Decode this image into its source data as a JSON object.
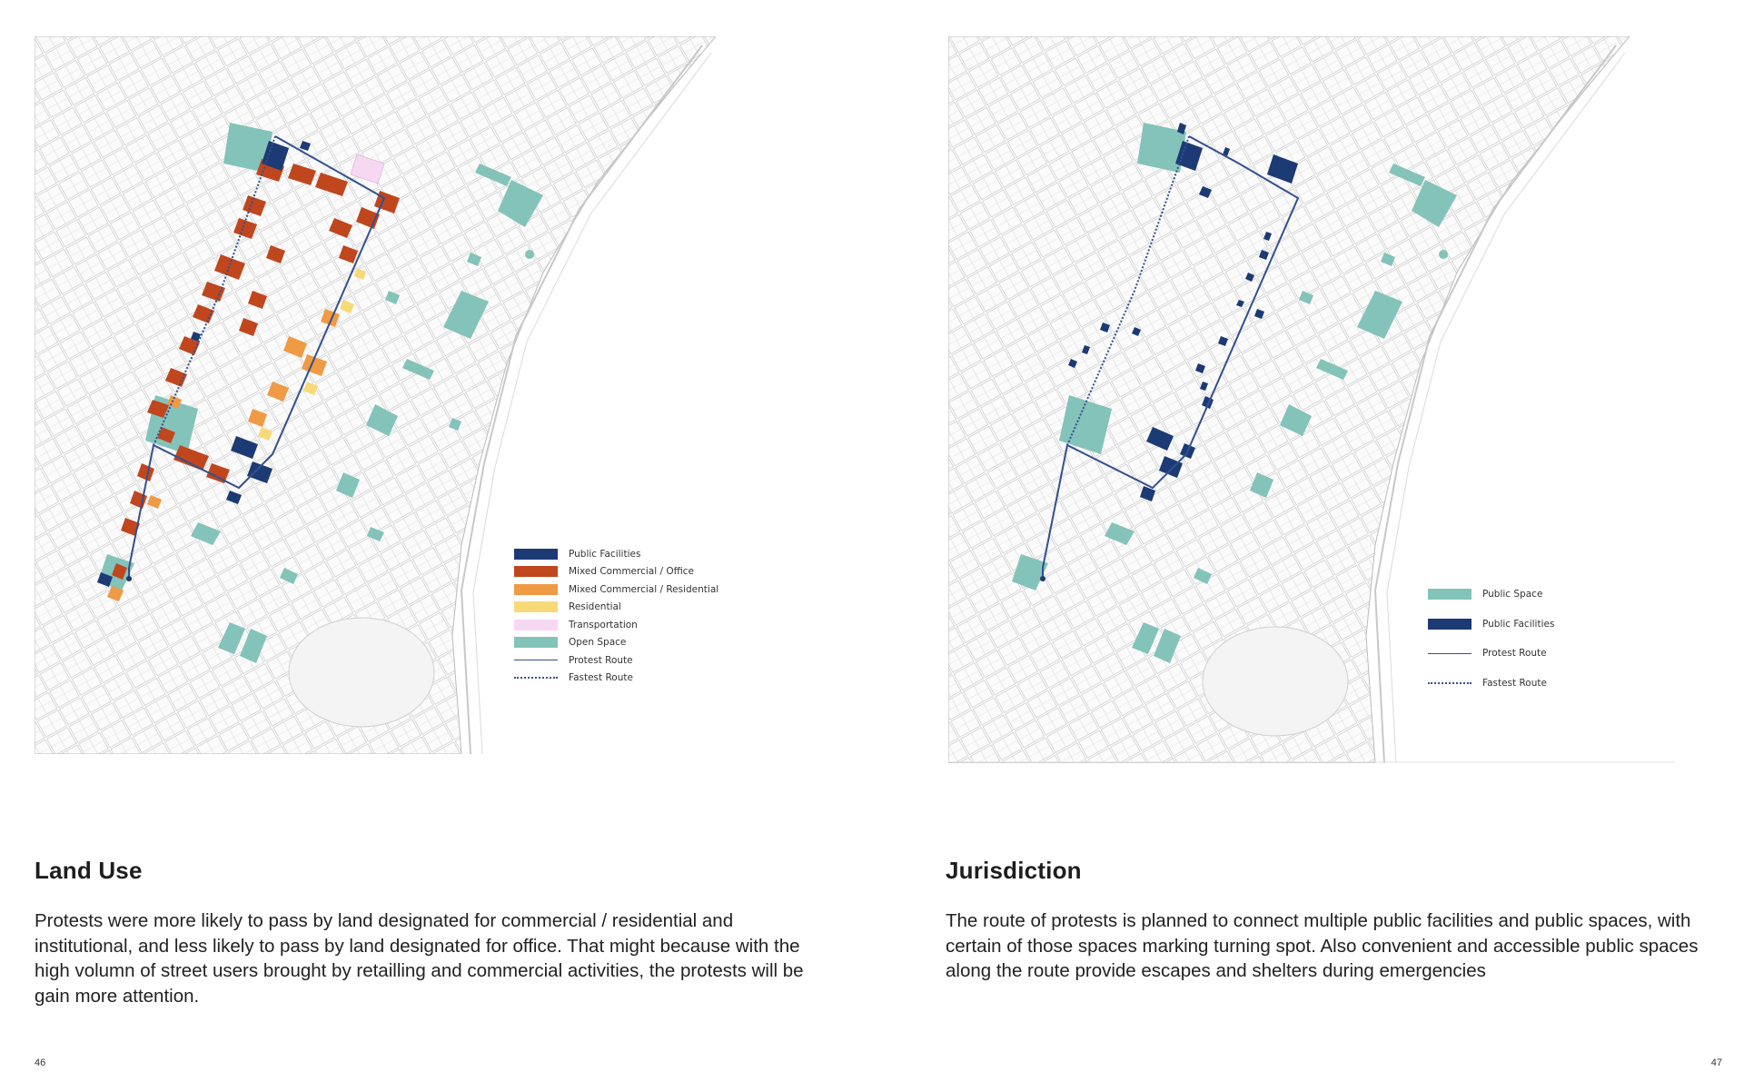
{
  "colors": {
    "public_facilities": "#1c3a73",
    "mixed_commercial_office": "#c0461e",
    "mixed_commercial_residential": "#ef9a45",
    "residential": "#f7d979",
    "transportation": "#f7d8f2",
    "open_space": "#84c3b9",
    "route": "#33508f",
    "block_outline": "#cfcfcf"
  },
  "left_page": {
    "title": "Land Use",
    "body": "Protests were more likely to pass by land designated for commercial / residential and institutional, and less likely to pass by land designated for office. That might because with the high volumn of street users brought by retailling and commercial activities, the protests will be gain more attention.",
    "page_number": "46",
    "legend": [
      {
        "label": "Public Facilities",
        "type": "box",
        "color": "#1c3a73"
      },
      {
        "label": "Mixed Commercial / Office",
        "type": "box",
        "color": "#c0461e"
      },
      {
        "label": "Mixed Commercial / Residential",
        "type": "box",
        "color": "#ef9a45"
      },
      {
        "label": "Residential",
        "type": "box",
        "color": "#f7d979"
      },
      {
        "label": "Transportation",
        "type": "box",
        "color": "#f7d8f2"
      },
      {
        "label": "Open Space",
        "type": "box",
        "color": "#84c3b9"
      },
      {
        "label": "Protest Route",
        "type": "line",
        "color": "#33508f"
      },
      {
        "label": "Fastest Route",
        "type": "dotted",
        "color": "#33508f"
      }
    ]
  },
  "right_page": {
    "title": "Jurisdiction",
    "body": "The route of protests is planned to connect multiple public facilities and public spaces, with certain of those spaces marking turning spot. Also convenient and accessible public spaces along the route provide escapes and shelters during emergencies",
    "page_number": "47",
    "legend": [
      {
        "label": "Public Space",
        "type": "box",
        "color": "#84c3b9"
      },
      {
        "label": "Public Facilities",
        "type": "box",
        "color": "#1c3a73"
      },
      {
        "label": "Protest Route",
        "type": "line",
        "color": "#33508f"
      },
      {
        "label": "Fastest Route",
        "type": "dotted",
        "color": "#33508f"
      }
    ]
  }
}
